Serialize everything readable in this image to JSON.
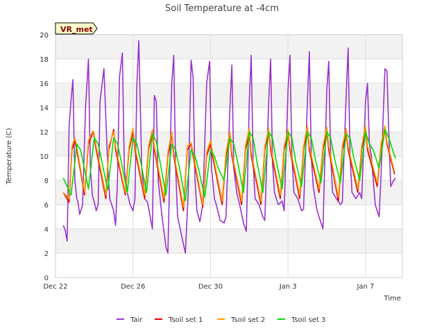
{
  "chart_data": {
    "type": "line",
    "title": "Soil Temperature at -4cm",
    "xlabel": "Time",
    "ylabel": "Temperature (C)",
    "badge": "VR_met",
    "xlim": [
      0,
      17.9
    ],
    "ylim": [
      0,
      20
    ],
    "yticks": [
      0,
      2,
      4,
      6,
      8,
      10,
      12,
      14,
      16,
      18,
      20
    ],
    "xticks": [
      {
        "value": 0,
        "label": "Dec 22"
      },
      {
        "value": 4,
        "label": "Dec 26"
      },
      {
        "value": 8,
        "label": "Dec 30"
      },
      {
        "value": 12,
        "label": "Jan 3"
      },
      {
        "value": 16,
        "label": "Jan 7"
      }
    ],
    "grid": true,
    "legend_position": "bottom",
    "series": [
      {
        "name": "Tair",
        "color": "#9932cc",
        "x": [
          0.4,
          0.5,
          0.6,
          0.7,
          0.8,
          0.9,
          1.0,
          1.1,
          1.15,
          1.25,
          1.4,
          1.55,
          1.7,
          1.8,
          1.9,
          2.0,
          2.1,
          2.2,
          2.3,
          2.5,
          2.7,
          2.8,
          3.0,
          3.1,
          3.2,
          3.3,
          3.45,
          3.55,
          3.7,
          3.85,
          4.0,
          4.1,
          4.2,
          4.3,
          4.45,
          4.6,
          4.75,
          5.0,
          5.1,
          5.2,
          5.3,
          5.5,
          5.7,
          5.8,
          6.0,
          6.1,
          6.2,
          6.3,
          6.5,
          6.7,
          6.85,
          7.0,
          7.1,
          7.2,
          7.3,
          7.45,
          7.6,
          7.8,
          7.95,
          8.05,
          8.2,
          8.3,
          8.5,
          8.7,
          8.8,
          9.0,
          9.1,
          9.2,
          9.35,
          9.5,
          9.7,
          9.85,
          10.0,
          10.1,
          10.2,
          10.3,
          10.5,
          10.7,
          10.8,
          11.0,
          11.1,
          11.2,
          11.3,
          11.5,
          11.7,
          11.8,
          12.0,
          12.1,
          12.2,
          12.3,
          12.5,
          12.7,
          12.8,
          13.0,
          13.1,
          13.2,
          13.3,
          13.5,
          13.7,
          13.8,
          14.0,
          14.1,
          14.2,
          14.3,
          14.5,
          14.7,
          14.8,
          15.0,
          15.1,
          15.2,
          15.3,
          15.5,
          15.7,
          15.8,
          16.0,
          16.1,
          16.2,
          16.3,
          16.5,
          16.7,
          16.8,
          17.0,
          17.1,
          17.2,
          17.3,
          17.45,
          17.55
        ],
        "y": [
          4.3,
          3.9,
          3.0,
          12.5,
          14.5,
          16.3,
          8.0,
          6.5,
          6.3,
          5.2,
          6.0,
          14.0,
          18.0,
          9.0,
          6.8,
          6.2,
          5.5,
          6.0,
          14.5,
          17.2,
          9.0,
          6.5,
          5.5,
          4.3,
          8.0,
          16.5,
          18.5,
          9.0,
          7.0,
          6.0,
          5.5,
          6.5,
          16.0,
          19.5,
          9.0,
          6.5,
          6.2,
          4.0,
          15.0,
          14.5,
          8.0,
          5.0,
          2.5,
          2.0,
          16.0,
          18.3,
          9.0,
          5.0,
          3.5,
          2.0,
          7.0,
          17.9,
          16.5,
          8.0,
          5.5,
          4.6,
          6.0,
          16.0,
          17.8,
          9.0,
          6.5,
          6.0,
          4.7,
          4.5,
          5.0,
          14.0,
          17.5,
          9.0,
          7.0,
          6.0,
          4.5,
          3.8,
          14.5,
          18.3,
          9.5,
          6.5,
          6.0,
          5.0,
          4.7,
          14.5,
          18.0,
          9.5,
          7.0,
          6.0,
          6.3,
          5.5,
          15.5,
          18.3,
          10.0,
          7.0,
          6.5,
          5.5,
          5.6,
          14.5,
          18.6,
          10.0,
          7.5,
          5.5,
          4.5,
          4.0,
          15.5,
          17.8,
          10.0,
          7.0,
          6.5,
          6.0,
          6.2,
          15.0,
          18.9,
          10.0,
          7.0,
          6.5,
          7.0,
          6.5,
          14.5,
          16.0,
          11.0,
          10.0,
          6.0,
          5.0,
          8.5,
          17.2,
          17.0,
          12.0,
          7.5,
          8.0,
          8.2
        ]
      },
      {
        "name": "Tsoil set 1",
        "color": "#dd0000",
        "x": [
          0.4,
          0.7,
          0.85,
          1.0,
          1.1,
          1.5,
          1.7,
          1.95,
          2.1,
          2.6,
          2.75,
          3.0,
          3.1,
          3.6,
          3.8,
          4.0,
          4.1,
          4.6,
          4.8,
          5.0,
          5.1,
          5.6,
          5.8,
          6.0,
          6.1,
          6.6,
          6.8,
          7.0,
          7.1,
          7.6,
          7.8,
          8.0,
          8.1,
          8.6,
          8.8,
          9.0,
          9.1,
          9.6,
          9.8,
          10.0,
          10.1,
          10.6,
          10.8,
          11.0,
          11.1,
          11.6,
          11.8,
          12.0,
          12.1,
          12.6,
          12.8,
          13.0,
          13.1,
          13.6,
          13.8,
          14.0,
          14.1,
          14.6,
          14.8,
          15.0,
          15.1,
          15.6,
          15.8,
          16.0,
          16.1,
          16.6,
          16.8,
          17.0,
          17.1,
          17.5
        ],
        "y": [
          7.0,
          6.2,
          10.5,
          11.3,
          10.5,
          6.8,
          11.0,
          12.0,
          10.5,
          6.5,
          10.5,
          12.2,
          10.5,
          6.8,
          10.5,
          12.0,
          10.5,
          6.5,
          10.5,
          12.0,
          10.5,
          6.2,
          10.0,
          11.8,
          10.0,
          5.5,
          10.5,
          11.0,
          10.0,
          5.8,
          10.0,
          11.0,
          10.0,
          6.0,
          10.0,
          11.8,
          10.0,
          6.0,
          10.5,
          11.8,
          10.0,
          6.0,
          10.5,
          12.2,
          10.5,
          6.5,
          10.5,
          12.0,
          10.5,
          6.5,
          10.5,
          12.3,
          10.5,
          7.0,
          10.5,
          12.0,
          10.5,
          6.3,
          10.5,
          12.0,
          10.5,
          7.0,
          10.5,
          12.3,
          10.5,
          7.5,
          10.8,
          12.3,
          11.0,
          8.5
        ]
      },
      {
        "name": "Tsoil set 2",
        "color": "#ff9900",
        "x": [
          0.4,
          0.7,
          0.85,
          1.0,
          1.1,
          1.5,
          1.7,
          1.95,
          2.1,
          2.6,
          2.75,
          3.0,
          3.1,
          3.6,
          3.8,
          4.0,
          4.1,
          4.6,
          4.8,
          5.0,
          5.1,
          5.6,
          5.8,
          6.0,
          6.1,
          6.6,
          6.8,
          7.0,
          7.1,
          7.6,
          7.8,
          8.0,
          8.1,
          8.6,
          8.8,
          9.0,
          9.1,
          9.6,
          9.8,
          10.0,
          10.1,
          10.6,
          10.8,
          11.0,
          11.1,
          11.6,
          11.8,
          12.0,
          12.1,
          12.6,
          12.8,
          13.0,
          13.1,
          13.6,
          13.8,
          14.0,
          14.1,
          14.6,
          14.8,
          15.0,
          15.1,
          15.6,
          15.8,
          16.0,
          16.1,
          16.6,
          16.8,
          17.0,
          17.1,
          17.5
        ],
        "y": [
          7.0,
          6.5,
          10.8,
          11.5,
          10.8,
          7.0,
          11.3,
          12.1,
          10.8,
          6.8,
          10.8,
          12.0,
          10.8,
          7.0,
          10.8,
          12.3,
          10.8,
          6.8,
          10.8,
          12.2,
          10.8,
          6.5,
          10.3,
          12.0,
          10.3,
          5.8,
          10.8,
          11.1,
          10.3,
          6.0,
          10.3,
          11.3,
          10.3,
          6.3,
          10.3,
          12.0,
          10.3,
          6.3,
          10.8,
          12.3,
          10.3,
          6.3,
          10.8,
          12.3,
          10.8,
          6.8,
          10.8,
          12.2,
          10.8,
          6.8,
          10.8,
          12.5,
          10.8,
          7.3,
          10.8,
          12.4,
          10.8,
          6.6,
          10.8,
          12.3,
          10.8,
          7.3,
          10.8,
          12.5,
          10.8,
          7.8,
          11.0,
          12.5,
          11.2,
          8.7
        ]
      },
      {
        "name": "Tsoil set 3",
        "color": "#00dd00",
        "x": [
          0.4,
          0.8,
          1.0,
          1.1,
          1.3,
          1.7,
          2.0,
          2.2,
          2.4,
          2.7,
          3.0,
          3.2,
          3.4,
          3.7,
          4.0,
          4.2,
          4.4,
          4.7,
          5.0,
          5.2,
          5.4,
          5.7,
          6.0,
          6.2,
          6.4,
          6.7,
          7.0,
          7.2,
          7.4,
          7.7,
          8.0,
          8.2,
          8.4,
          8.7,
          9.0,
          9.2,
          9.4,
          9.7,
          10.0,
          10.2,
          10.4,
          10.7,
          11.0,
          11.2,
          11.4,
          11.7,
          12.0,
          12.2,
          12.4,
          12.7,
          13.0,
          13.2,
          13.4,
          13.7,
          14.0,
          14.2,
          14.4,
          14.7,
          15.0,
          15.2,
          15.4,
          15.7,
          16.0,
          16.2,
          16.4,
          16.7,
          17.0,
          17.2,
          17.4,
          17.55
        ],
        "y": [
          8.2,
          6.8,
          9.5,
          11.0,
          10.5,
          7.3,
          11.5,
          11.0,
          9.5,
          7.2,
          11.5,
          11.0,
          9.5,
          7.0,
          11.5,
          11.0,
          9.5,
          7.0,
          11.8,
          11.2,
          9.5,
          6.8,
          11.0,
          10.5,
          9.0,
          6.3,
          10.5,
          10.0,
          8.8,
          6.6,
          10.5,
          10.0,
          9.0,
          8.0,
          11.5,
          11.0,
          9.5,
          7.0,
          12.0,
          11.5,
          9.5,
          7.0,
          12.0,
          11.5,
          9.5,
          7.3,
          12.0,
          11.5,
          9.5,
          7.5,
          12.0,
          11.5,
          9.8,
          7.8,
          12.0,
          11.5,
          9.8,
          7.8,
          11.8,
          11.5,
          9.8,
          8.0,
          12.0,
          11.0,
          10.5,
          9.0,
          12.2,
          11.5,
          10.5,
          9.8
        ]
      }
    ]
  }
}
